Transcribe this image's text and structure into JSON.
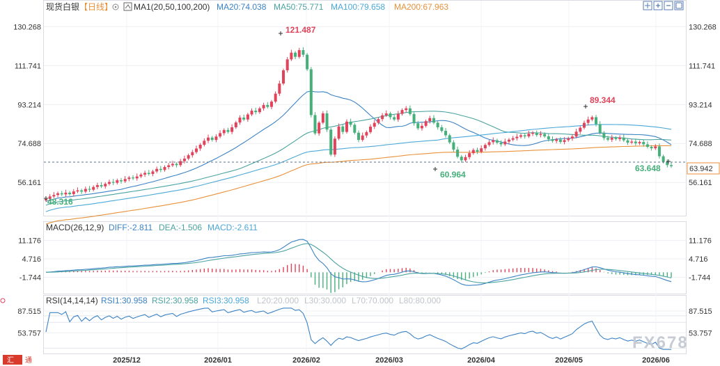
{
  "header": {
    "instrument": "现货白银",
    "period": "【日线】",
    "ma_study_label": "MA1(20,50,100,200)",
    "ma_values": [
      {
        "label": "MA20:74.038",
        "color": "#3b82c4"
      },
      {
        "label": "MA50:75.771",
        "color": "#4aa3a0"
      },
      {
        "label": "MA100:79.658",
        "color": "#4aa8d8"
      },
      {
        "label": "MA200:67.963",
        "color": "#e8913a"
      }
    ]
  },
  "toolbar": {
    "icons": [
      "crosshair-icon",
      "zoom-in-icon",
      "zoom-out-icon",
      "fullscreen-icon"
    ]
  },
  "price_axis": {
    "ticks": [
      "130.268",
      "111.741",
      "93.214",
      "74.688",
      "56.161"
    ],
    "tick_values": [
      130.268,
      111.741,
      93.214,
      74.688,
      56.161
    ],
    "current_price": "63.942"
  },
  "price_annotations": {
    "high": "121.487",
    "low_start": "48.316",
    "low_mid": "60.964",
    "high_late": "89.344",
    "low_end": "63.648"
  },
  "macd": {
    "label": "MACD(26,12,9)",
    "diff": "DIFF:-2.811",
    "dea": "DEA:-1.506",
    "macd": "MACD:-2.611",
    "ticks": [
      "11.176",
      "4.716",
      "-1.744"
    ],
    "tick_values": [
      11.176,
      4.716,
      -1.744
    ]
  },
  "rsi": {
    "label": "RSI(14,14,14)",
    "rsi1": "RSI1:30.958",
    "rsi2": "RSI2:30.958",
    "rsi3": "RSI3:30.958",
    "l20": "L20:20.000",
    "l30": "L30:30.000",
    "l70": "L70:70.000",
    "l80": "L80:80.000",
    "ticks": [
      "87.515",
      "53.757"
    ],
    "tick_values": [
      87.515,
      53.757
    ]
  },
  "date_axis": {
    "labels": [
      "2025/12",
      "2026/01",
      "2026/02",
      "2026/03",
      "2026/04",
      "2026/05",
      "2026/06"
    ]
  },
  "watermark": "FX678",
  "colors": {
    "up": "#e0435a",
    "down": "#45b07a",
    "ma20": "#3b82c4",
    "ma50": "#4aa3a0",
    "ma100": "#4aa8d8",
    "ma200": "#e8913a",
    "diff": "#3b82c4",
    "dea": "#4aa3a0",
    "rsi": "#3b82c4",
    "current": "#e8913a"
  },
  "chart_data": {
    "type": "candlestick",
    "title": "",
    "x_labels": [
      "2025/12",
      "2026/01",
      "2026/02",
      "2026/03",
      "2026/04",
      "2026/05",
      "2026/06"
    ],
    "ylim": [
      42,
      135
    ],
    "close": [
      48.3,
      49.5,
      50.2,
      51.0,
      50.5,
      51.3,
      50.6,
      51.9,
      52.4,
      51.8,
      53.1,
      52.7,
      54.0,
      54.9,
      54.3,
      55.5,
      56.4,
      56.0,
      57.2,
      56.7,
      57.8,
      58.5,
      58.1,
      59.0,
      59.9,
      60.7,
      60.2,
      61.4,
      62.6,
      62.1,
      63.5,
      64.3,
      65.0,
      64.4,
      66.3,
      67.5,
      69.1,
      70.6,
      72.3,
      74.1,
      76.0,
      77.5,
      76.4,
      78.0,
      79.6,
      81.1,
      80.2,
      82.4,
      84.7,
      87.0,
      86.1,
      88.5,
      90.3,
      89.6,
      91.4,
      93.0,
      92.1,
      94.6,
      98.4,
      103.2,
      109.5,
      114.7,
      117.9,
      115.9,
      119.1,
      116.9,
      110.0,
      88.2,
      79.5,
      84.6,
      89.0,
      81.3,
      69.4,
      77.0,
      82.8,
      80.2,
      85.1,
      83.6,
      79.8,
      76.4,
      78.5,
      80.1,
      82.7,
      84.5,
      86.3,
      88.1,
      89.0,
      87.2,
      86.1,
      88.8,
      90.6,
      91.4,
      88.7,
      84.3,
      81.9,
      83.1,
      85.3,
      86.8,
      84.6,
      82.4,
      80.7,
      78.6,
      75.2,
      71.8,
      68.4,
      66.7,
      68.2,
      70.1,
      71.6,
      70.8,
      72.4,
      74.0,
      75.3,
      76.2,
      75.1,
      74.3,
      75.6,
      76.5,
      77.2,
      77.9,
      78.6,
      78.1,
      79.3,
      79.8,
      78.7,
      79.2,
      78.1,
      76.7,
      75.9,
      76.6,
      75.4,
      76.3,
      77.1,
      78.0,
      80.3,
      82.2,
      84.5,
      86.1,
      87.2,
      83.9,
      79.8,
      77.3,
      76.5,
      77.4,
      76.8,
      77.5,
      76.2,
      75.1,
      75.6,
      74.8,
      75.4,
      74.3,
      73.1,
      72.4,
      73.3,
      68.6,
      66.0,
      64.4,
      63.9
    ]
  }
}
